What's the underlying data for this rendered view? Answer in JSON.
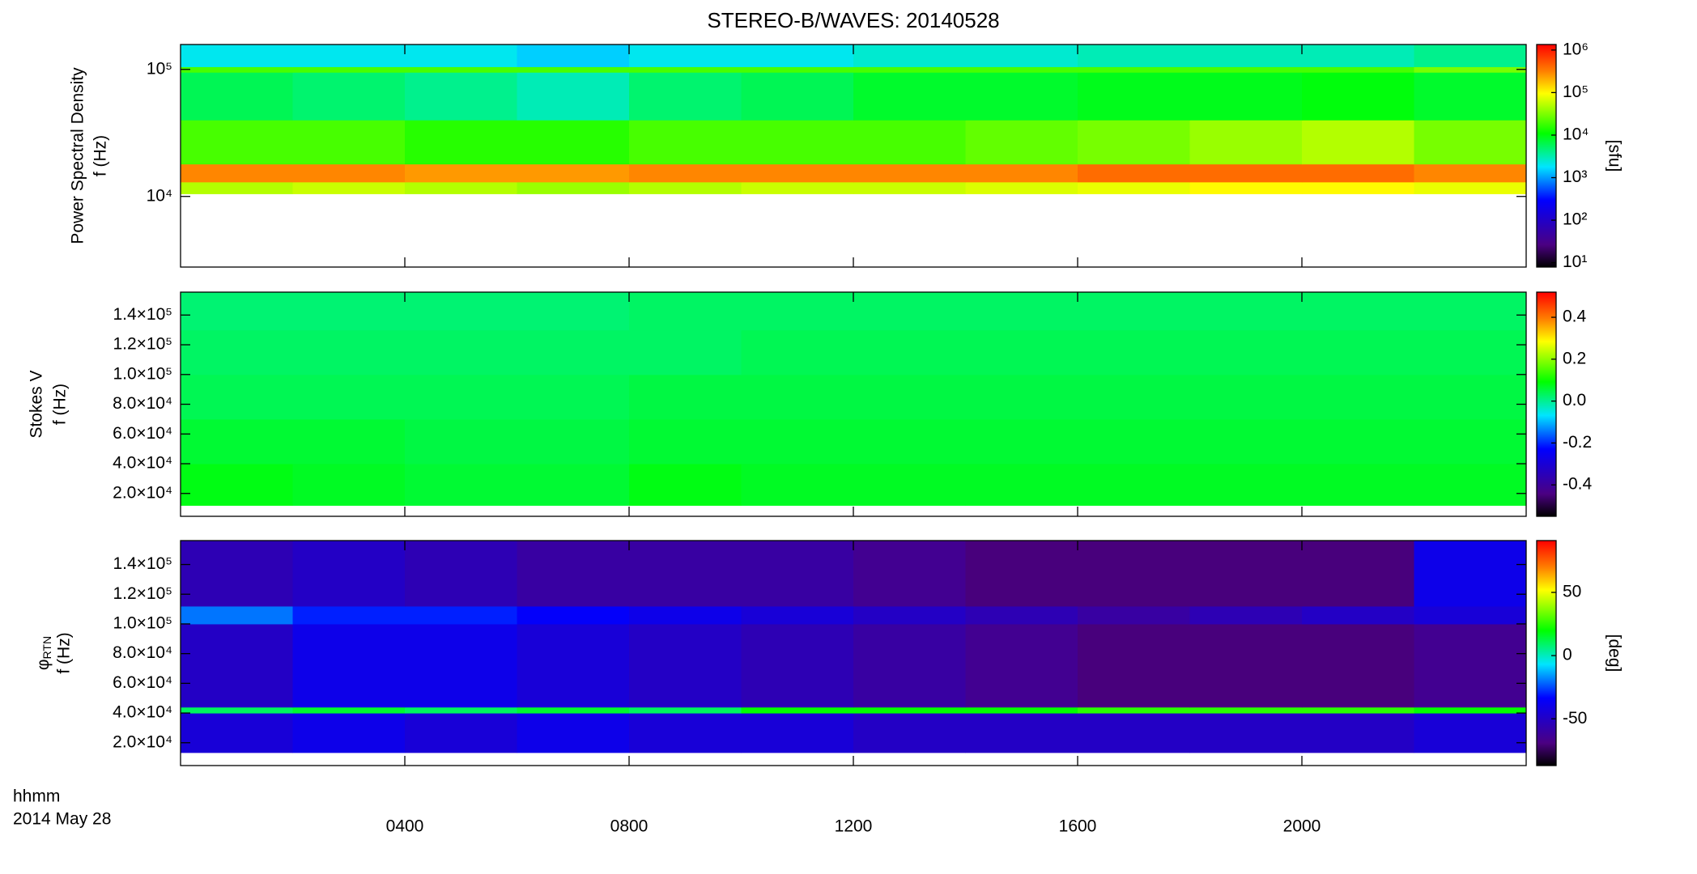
{
  "title": "STEREO-B/WAVES: 20140528",
  "x_axis": {
    "xlim": [
      0,
      24
    ],
    "xticks": [
      {
        "value": 4,
        "label": "0400"
      },
      {
        "value": 8,
        "label": "0800"
      },
      {
        "value": 12,
        "label": "1200"
      },
      {
        "value": 16,
        "label": "1600"
      },
      {
        "value": 20,
        "label": "2000"
      }
    ],
    "unit_label": "hhmm",
    "date_label": "2014 May 28"
  },
  "chart_data": [
    {
      "type": "spectrogram",
      "ylabel": "Power Spectral Density",
      "ylabel2": "f (Hz)",
      "yscale": "log",
      "ylim": [
        2780,
        157000
      ],
      "yticks": [
        {
          "value": 10000,
          "label": "10⁴"
        },
        {
          "value": 100000,
          "label": "10⁵"
        }
      ],
      "x_bins": [
        0,
        2,
        4,
        6,
        8,
        10,
        12,
        14,
        16,
        18,
        20,
        22,
        24
      ],
      "y_bins": [
        10500,
        13000,
        18000,
        40000,
        95000,
        105000,
        157000
      ],
      "values": [
        [
          50000,
          60000,
          50000,
          40000,
          50000,
          60000,
          60000,
          70000,
          80000,
          100000,
          100000,
          80000
        ],
        [
          300000,
          300000,
          250000,
          250000,
          300000,
          300000,
          300000,
          300000,
          400000,
          400000,
          400000,
          300000
        ],
        [
          20000,
          20000,
          15000,
          15000,
          20000,
          20000,
          20000,
          25000,
          30000,
          40000,
          50000,
          30000
        ],
        [
          6000,
          5000,
          4000,
          3000,
          5000,
          6000,
          8000,
          8000,
          9000,
          9000,
          10000,
          8000
        ],
        [
          20000,
          20000,
          20000,
          20000,
          20000,
          20000,
          20000,
          20000,
          20000,
          20000,
          20000,
          30000
        ],
        [
          2000,
          2000,
          2000,
          1500,
          2000,
          2000,
          2500,
          2500,
          3000,
          3000,
          3000,
          4000
        ]
      ],
      "zscale": "log",
      "zlim": [
        7.9,
        1350000
      ],
      "zticks": [
        {
          "value": 10,
          "label": "10¹"
        },
        {
          "value": 100,
          "label": "10²"
        },
        {
          "value": 1000,
          "label": "10³"
        },
        {
          "value": 10000,
          "label": "10⁴"
        },
        {
          "value": 100000,
          "label": "10⁵"
        },
        {
          "value": 1000000,
          "label": "10⁶"
        }
      ],
      "colorbar_label": "[sfu]",
      "colormap": "rainbow"
    },
    {
      "type": "spectrogram",
      "ylabel": "Stokes V",
      "ylabel2": "f (Hz)",
      "yscale": "linear",
      "ylim": [
        4630,
        155400
      ],
      "yticks": [
        {
          "value": 20000,
          "label": "2.0×10⁴"
        },
        {
          "value": 40000,
          "label": "4.0×10⁴"
        },
        {
          "value": 60000,
          "label": "6.0×10⁴"
        },
        {
          "value": 80000,
          "label": "8.0×10⁴"
        },
        {
          "value": 100000,
          "label": "1.0×10⁵"
        },
        {
          "value": 120000,
          "label": "1.2×10⁵"
        },
        {
          "value": 140000,
          "label": "1.4×10⁵"
        }
      ],
      "x_bins": [
        0,
        2,
        4,
        6,
        8,
        10,
        12,
        14,
        16,
        18,
        20,
        22,
        24
      ],
      "y_bins": [
        12000,
        40000,
        70000,
        100000,
        130000,
        155400
      ],
      "values": [
        [
          0.08,
          0.07,
          0.06,
          0.06,
          0.08,
          0.07,
          0.07,
          0.07,
          0.07,
          0.07,
          0.07,
          0.07
        ],
        [
          0.06,
          0.06,
          0.05,
          0.05,
          0.06,
          0.06,
          0.06,
          0.06,
          0.06,
          0.06,
          0.06,
          0.06
        ],
        [
          0.04,
          0.04,
          0.04,
          0.04,
          0.05,
          0.05,
          0.05,
          0.05,
          0.05,
          0.05,
          0.05,
          0.05
        ],
        [
          0.03,
          0.03,
          0.03,
          0.03,
          0.03,
          0.04,
          0.04,
          0.04,
          0.04,
          0.04,
          0.04,
          0.04
        ],
        [
          0.02,
          0.02,
          0.02,
          0.02,
          0.03,
          0.03,
          0.03,
          0.03,
          0.03,
          0.03,
          0.03,
          0.03
        ]
      ],
      "zscale": "linear",
      "zlim": [
        -0.55,
        0.52
      ],
      "zticks": [
        {
          "value": -0.4,
          "label": "-0.4"
        },
        {
          "value": -0.2,
          "label": "-0.2"
        },
        {
          "value": 0,
          "label": "0.0"
        },
        {
          "value": 0.2,
          "label": "0.2"
        },
        {
          "value": 0.4,
          "label": "0.4"
        }
      ],
      "colormap": "rainbow"
    },
    {
      "type": "spectrogram",
      "ylabel": {
        "symbol": "φ",
        "subscript": "RTN"
      },
      "ylabel2": "f (Hz)",
      "yscale": "linear",
      "ylim": [
        4630,
        156100
      ],
      "yticks": [
        {
          "value": 20000,
          "label": "2.0×10⁴"
        },
        {
          "value": 40000,
          "label": "4.0×10⁴"
        },
        {
          "value": 60000,
          "label": "6.0×10⁴"
        },
        {
          "value": 80000,
          "label": "8.0×10⁴"
        },
        {
          "value": 100000,
          "label": "1.0×10⁵"
        },
        {
          "value": 120000,
          "label": "1.2×10⁵"
        },
        {
          "value": 140000,
          "label": "1.4×10⁵"
        }
      ],
      "x_bins": [
        0,
        2,
        4,
        6,
        8,
        10,
        12,
        14,
        16,
        18,
        20,
        22,
        24
      ],
      "y_bins": [
        13400,
        40000,
        44000,
        100000,
        112000,
        156100
      ],
      "values": [
        [
          -45,
          -40,
          -45,
          -40,
          -45,
          -45,
          -50,
          -50,
          -50,
          -50,
          -50,
          -45
        ],
        [
          10,
          15,
          10,
          15,
          10,
          20,
          20,
          20,
          25,
          25,
          25,
          20
        ],
        [
          -50,
          -40,
          -40,
          -45,
          -50,
          -55,
          -60,
          -65,
          -70,
          -70,
          -70,
          -65
        ],
        [
          -20,
          -30,
          -30,
          -35,
          -40,
          -45,
          -50,
          -55,
          -60,
          -55,
          -50,
          -45
        ],
        [
          -55,
          -50,
          -55,
          -60,
          -60,
          -60,
          -65,
          -70,
          -70,
          -70,
          -70,
          -40
        ]
      ],
      "zscale": "linear",
      "zlim": [
        -87,
        91
      ],
      "zticks": [
        -50,
        0,
        50
      ],
      "colorbar_label": "[deg]",
      "colormap": "rainbow"
    }
  ]
}
